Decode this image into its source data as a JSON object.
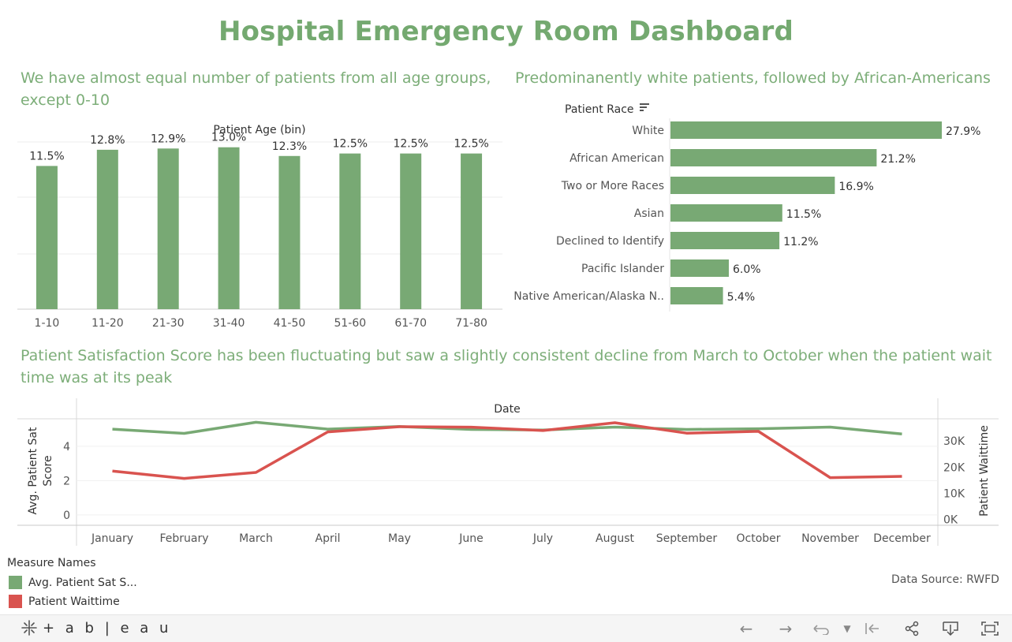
{
  "dashboard": {
    "title": "Hospital Emergency Room Dashboard",
    "accent": "#78a974",
    "wait_color": "#d9534f"
  },
  "age_chart": {
    "subtitle": "We have almost equal number of patients from all age groups, except 0-10",
    "header": "Patient Age (bin)"
  },
  "race_chart": {
    "subtitle": "Predominanently white patients, followed by African-Americans",
    "header": "Patient Race",
    "sort_icon": "sort-descending-icon"
  },
  "trend_chart": {
    "subtitle": "Patient Satisfaction Score has been fluctuating but saw a slightly consistent decline from March to October when the patient wait time was at its peak",
    "header": "Date",
    "left_axis_title": "Avg. Patient Sat Score",
    "right_axis_title": "Patient Waittime"
  },
  "legend": {
    "title": "Measure Names",
    "items": [
      {
        "label": "Avg. Patient Sat S...",
        "color": "#78a974"
      },
      {
        "label": "Patient Waittime",
        "color": "#d9534f"
      }
    ]
  },
  "source": "Data Source: RWFD",
  "toolbar": {
    "brand": "+ a b | e a u",
    "icons": [
      "undo-icon",
      "redo-icon",
      "revert-icon",
      "dropdown-icon",
      "reset-icon",
      "share-icon",
      "download-icon",
      "fullscreen-icon"
    ]
  },
  "chart_data": [
    {
      "type": "bar",
      "title": "Patient Age (bin)",
      "categories": [
        "1-10",
        "11-20",
        "21-30",
        "31-40",
        "41-50",
        "51-60",
        "61-70",
        "71-80"
      ],
      "values": [
        11.5,
        12.8,
        12.9,
        13.0,
        12.3,
        12.5,
        12.5,
        12.5
      ],
      "labels": [
        "11.5%",
        "12.8%",
        "12.9%",
        "13.0%",
        "12.3%",
        "12.5%",
        "12.5%",
        "12.5%"
      ],
      "grid": true
    },
    {
      "type": "bar",
      "orientation": "horizontal",
      "title": "Patient Race",
      "categories": [
        "White",
        "African American",
        "Two or More Races",
        "Asian",
        "Declined to Identify",
        "Pacific Islander",
        "Native American/Alaska N.."
      ],
      "values": [
        27.9,
        21.2,
        16.9,
        11.5,
        11.2,
        6.0,
        5.4
      ],
      "labels": [
        "27.9%",
        "21.2%",
        "16.9%",
        "11.5%",
        "11.2%",
        "6.0%",
        "5.4%"
      ]
    },
    {
      "type": "line",
      "title": "Date",
      "x": [
        "January",
        "February",
        "March",
        "April",
        "May",
        "June",
        "July",
        "August",
        "September",
        "October",
        "November",
        "December"
      ],
      "series": [
        {
          "name": "Avg. Patient Sat S...",
          "axis": "left",
          "values": [
            5.0,
            4.75,
            5.4,
            5.0,
            5.15,
            4.98,
            4.95,
            5.12,
            4.98,
            5.02,
            5.12,
            4.72
          ]
        },
        {
          "name": "Patient Waittime",
          "axis": "right",
          "values": [
            18500,
            15700,
            18000,
            33500,
            35500,
            35300,
            34000,
            37000,
            33000,
            33700,
            16000,
            16500
          ]
        }
      ],
      "left_axis": {
        "title": "Avg. Patient Sat Score",
        "ticks": [
          "0",
          "2",
          "4"
        ],
        "range": [
          -0.6,
          5.6
        ]
      },
      "right_axis": {
        "title": "Patient Waittime",
        "ticks": [
          "0K",
          "10K",
          "20K",
          "30K"
        ],
        "range": [
          -2200,
          38500
        ]
      }
    }
  ]
}
